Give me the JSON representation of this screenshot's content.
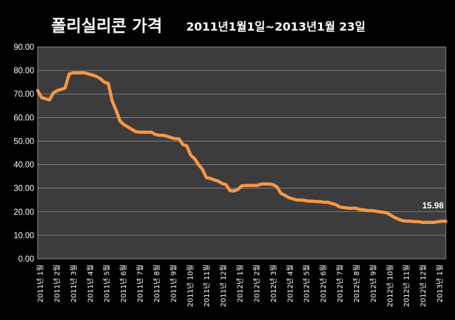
{
  "chart_data": {
    "type": "line",
    "title": "폴리실리콘 가격",
    "subtitle": "2011년1월1일~2013년1월 23일",
    "xlabel": "",
    "ylabel": "",
    "ylim": [
      0,
      90
    ],
    "yticks": [
      "0.00",
      "10.00",
      "20.00",
      "30.00",
      "40.00",
      "50.00",
      "60.00",
      "70.00",
      "80.00",
      "90.00"
    ],
    "xticks": [
      "2011년 1월",
      "2011년 2월",
      "2011년 3월",
      "2011년 4월",
      "2011년 5월",
      "2011년 6월",
      "2011년 7월",
      "2011년 8월",
      "2011년 9월",
      "2011년 10월",
      "2011년 11월",
      "2011년 12월",
      "2012년 1월",
      "2012년 2월",
      "2012년 3월",
      "2012년 4월",
      "2012년 5월",
      "2012년 6월",
      "2012년 7월",
      "2012년 8월",
      "2012년 9월",
      "2012년 10월",
      "2012년 11월",
      "2012년 12월",
      "2013년 1월"
    ],
    "grid": true,
    "line_color": "#f79646",
    "plot_background": "#3c3c3c",
    "series": [
      {
        "values": [
          71.5,
          68.5,
          68,
          67.5,
          70.5,
          71.5,
          72,
          72.5,
          78.5,
          79,
          79,
          79,
          79,
          78.5,
          78,
          77.5,
          76.5,
          75,
          74.5,
          67,
          63,
          58.5,
          57,
          56,
          55,
          54,
          53.8,
          53.8,
          53.8,
          53.8,
          52.8,
          52.5,
          52.5,
          52,
          51.5,
          51,
          51,
          48.5,
          48,
          44,
          42.5,
          40,
          38,
          34.5,
          34.2,
          33.5,
          33,
          32,
          31.5,
          29,
          28.8,
          29.5,
          31,
          31.2,
          31.2,
          31.2,
          31.2,
          31.8,
          31.8,
          31.8,
          31.5,
          30.5,
          27.8,
          27,
          26,
          25.5,
          25,
          25,
          24.8,
          24.5,
          24.5,
          24.3,
          24.3,
          24,
          24,
          23.5,
          23,
          22,
          21.8,
          21.5,
          21.5,
          21.5,
          21,
          20.8,
          20.5,
          20.5,
          20.3,
          20,
          19.8,
          19.5,
          18.5,
          17.5,
          16.8,
          16.2,
          16,
          16,
          15.8,
          15.8,
          15.5,
          15.5,
          15.5,
          15.5,
          15.8,
          15.98,
          15.98
        ]
      }
    ],
    "annotation": {
      "text": "15.98"
    }
  }
}
